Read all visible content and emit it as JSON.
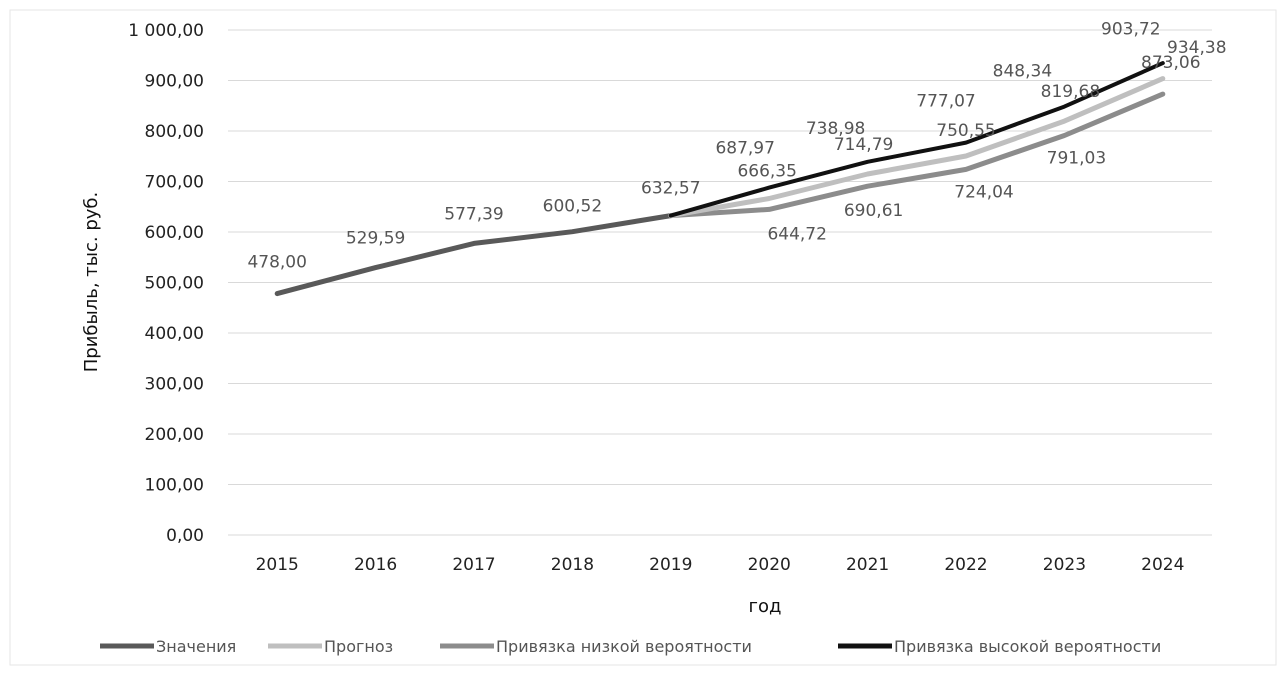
{
  "chart_data": {
    "type": "line",
    "title": "",
    "xlabel": "год",
    "ylabel": "Прибыль, тыс. руб.",
    "ylim": [
      0,
      1000
    ],
    "y_tick_step": 100,
    "y_tick_labels": [
      "0,00",
      "100,00",
      "200,00",
      "300,00",
      "400,00",
      "500,00",
      "600,00",
      "700,00",
      "800,00",
      "900,00",
      "1 000,00"
    ],
    "categories": [
      "2015",
      "2016",
      "2017",
      "2018",
      "2019",
      "2020",
      "2021",
      "2022",
      "2023",
      "2024"
    ],
    "grid": "horizontal",
    "legend_position": "bottom",
    "series": [
      {
        "name": "Значения",
        "color": "#595959",
        "values": [
          478.0,
          529.59,
          577.39,
          600.52,
          632.57,
          null,
          null,
          null,
          null,
          null
        ],
        "labels": [
          "478,00",
          "529,59",
          "577,39",
          "600,52",
          "632,57",
          "",
          "",
          "",
          "",
          ""
        ]
      },
      {
        "name": "Прогноз",
        "color": "#bfbfbf",
        "values": [
          null,
          null,
          null,
          null,
          632.57,
          666.35,
          714.79,
          750.55,
          819.68,
          903.72
        ],
        "labels": [
          "",
          "",
          "",
          "",
          "",
          "666,35",
          "714,79",
          "750,55",
          "819,68",
          "903,72"
        ]
      },
      {
        "name": "Привязка низкой вероятности",
        "color": "#8c8c8c",
        "values": [
          null,
          null,
          null,
          null,
          632.57,
          644.72,
          690.61,
          724.04,
          791.03,
          873.06
        ],
        "labels": [
          "",
          "",
          "",
          "",
          "",
          "644,72",
          "690,61",
          "724,04",
          "791,03",
          "873,06"
        ]
      },
      {
        "name": "Привязка высокой вероятности",
        "color": "#111111",
        "values": [
          null,
          null,
          null,
          null,
          632.57,
          687.97,
          738.98,
          777.07,
          848.34,
          934.38
        ],
        "labels": [
          "",
          "",
          "",
          "",
          "",
          "687,97",
          "738,98",
          "777,07",
          "848,34",
          "934,38"
        ]
      }
    ]
  }
}
